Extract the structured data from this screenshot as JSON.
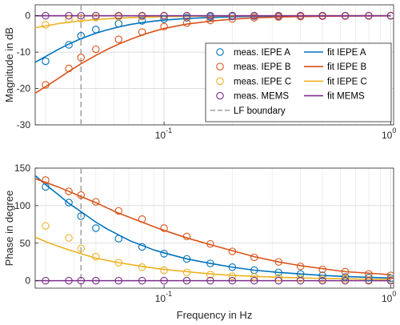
{
  "chart_data": [
    {
      "type": "line",
      "xscale": "log",
      "xlim": [
        0.027,
        1.03
      ],
      "ylim": [
        -30,
        3
      ],
      "yticks": [
        0,
        -10,
        -20,
        -30
      ],
      "ytick_labels": [
        "0",
        "-10",
        "-20",
        "-30"
      ],
      "xticks": [
        0.1,
        1
      ],
      "xtick_labels": [
        "10",
        "-1",
        "10",
        "0"
      ],
      "ylabel": "Magnitude in dB",
      "xlabel": "",
      "grid": true,
      "legend_position": "center-right",
      "boundary": {
        "name": "LF boundary",
        "x": 0.043,
        "color": "#a0a0a0"
      },
      "series": [
        {
          "name": "meas. IEPE A",
          "color": "#0072BD",
          "kind": "marker",
          "x": [
            0.03,
            0.038,
            0.043,
            0.05,
            0.063,
            0.08,
            0.1,
            0.126,
            0.16,
            0.2,
            0.25,
            0.32,
            0.4,
            0.5,
            0.63,
            0.8,
            1.0
          ],
          "y": [
            -12.5,
            -8,
            -5.5,
            -3.8,
            -2.2,
            -1.4,
            -0.9,
            -0.55,
            -0.35,
            -0.2,
            -0.12,
            -0.08,
            -0.05,
            -0.03,
            -0.02,
            -0.01,
            0
          ]
        },
        {
          "name": "meas. IEPE B",
          "color": "#D95319",
          "kind": "marker",
          "x": [
            0.03,
            0.038,
            0.043,
            0.05,
            0.063,
            0.08,
            0.1,
            0.126,
            0.16,
            0.2,
            0.25,
            0.32,
            0.4,
            0.5,
            0.63,
            0.8,
            1.0
          ],
          "y": [
            -19,
            -14.5,
            -11.5,
            -9.2,
            -6.5,
            -4.5,
            -3,
            -2,
            -1.3,
            -0.85,
            -0.55,
            -0.35,
            -0.22,
            -0.14,
            -0.09,
            -0.05,
            -0.03
          ]
        },
        {
          "name": "meas. IEPE C",
          "color": "#EDB120",
          "kind": "marker",
          "x": [
            0.03,
            0.038,
            0.043,
            0.05,
            0.063,
            0.08,
            0.1,
            0.126,
            0.16,
            0.2,
            0.25,
            0.32,
            0.4,
            0.5,
            0.63,
            0.8,
            1.0
          ],
          "y": [
            -2.5,
            -1,
            -0.8,
            -0.5,
            -0.3,
            -0.2,
            -0.12,
            -0.08,
            -0.05,
            -0.03,
            -0.02,
            -0.01,
            0,
            0,
            0,
            0,
            0
          ]
        },
        {
          "name": "meas. MEMS",
          "color": "#7E2F8E",
          "kind": "marker",
          "x": [
            0.03,
            0.038,
            0.043,
            0.05,
            0.063,
            0.08,
            0.1,
            0.126,
            0.16,
            0.2,
            0.25,
            0.32,
            0.4,
            0.5,
            0.63,
            0.8,
            1.0
          ],
          "y": [
            0,
            0,
            0,
            0,
            0,
            0,
            0,
            0,
            0,
            0,
            0,
            0,
            0,
            0,
            0,
            0,
            0
          ]
        },
        {
          "name": "fit IEPE A",
          "color": "#0072BD",
          "kind": "line",
          "x": [
            0.027,
            0.03,
            0.034,
            0.038,
            0.043,
            0.05,
            0.056,
            0.063,
            0.071,
            0.08,
            0.09,
            0.1,
            0.126,
            0.16,
            0.2,
            0.25,
            0.32,
            0.4,
            0.5,
            0.63,
            0.8,
            1.0
          ],
          "y": [
            -12.8,
            -11.2,
            -9.3,
            -7.8,
            -6.3,
            -4.8,
            -3.9,
            -3.1,
            -2.4,
            -1.9,
            -1.5,
            -1.2,
            -0.75,
            -0.48,
            -0.3,
            -0.19,
            -0.12,
            -0.08,
            -0.05,
            -0.03,
            -0.02,
            -0.01
          ]
        },
        {
          "name": "fit IEPE B",
          "color": "#D95319",
          "kind": "line",
          "x": [
            0.027,
            0.03,
            0.034,
            0.038,
            0.043,
            0.05,
            0.056,
            0.063,
            0.071,
            0.08,
            0.09,
            0.1,
            0.126,
            0.16,
            0.2,
            0.25,
            0.32,
            0.4,
            0.5,
            0.63,
            0.8,
            1.0
          ],
          "y": [
            -21.3,
            -19.5,
            -17.3,
            -15.3,
            -13.2,
            -10.9,
            -9.3,
            -7.8,
            -6.5,
            -5.3,
            -4.3,
            -3.5,
            -2.3,
            -1.5,
            -0.95,
            -0.6,
            -0.38,
            -0.24,
            -0.15,
            -0.1,
            -0.06,
            -0.04
          ]
        },
        {
          "name": "fit IEPE C",
          "color": "#EDB120",
          "kind": "line",
          "x": [
            0.027,
            0.03,
            0.034,
            0.038,
            0.043,
            0.05,
            0.063,
            0.08,
            0.1,
            0.126,
            0.16,
            0.2,
            0.32,
            0.5,
            1.0
          ],
          "y": [
            -3.3,
            -2.8,
            -2.2,
            -1.8,
            -1.4,
            -1.05,
            -0.65,
            -0.4,
            -0.25,
            -0.16,
            -0.1,
            -0.06,
            -0.025,
            -0.01,
            0
          ]
        },
        {
          "name": "fit MEMS",
          "color": "#7E2F8E",
          "kind": "line",
          "x": [
            0.027,
            1.0
          ],
          "y": [
            0,
            0
          ]
        }
      ]
    },
    {
      "type": "line",
      "xscale": "log",
      "xlim": [
        0.027,
        1.03
      ],
      "ylim": [
        -10,
        150
      ],
      "yticks": [
        0,
        50,
        100,
        150
      ],
      "ytick_labels": [
        "0",
        "50",
        "100",
        "150"
      ],
      "xticks": [
        0.1,
        1
      ],
      "xtick_labels": [
        "10",
        "-1",
        "10",
        "0"
      ],
      "ylabel": "Phase in degree",
      "xlabel": "Frequency in Hz",
      "grid": true,
      "boundary": {
        "name": "LF boundary",
        "x": 0.043,
        "color": "#a0a0a0"
      },
      "series": [
        {
          "name": "meas. IEPE A",
          "color": "#0072BD",
          "kind": "marker",
          "x": [
            0.03,
            0.038,
            0.043,
            0.05,
            0.063,
            0.08,
            0.1,
            0.126,
            0.16,
            0.2,
            0.25,
            0.32,
            0.4,
            0.5,
            0.63,
            0.8,
            1.0
          ],
          "y": [
            125,
            104,
            86,
            70,
            56,
            45,
            36,
            29,
            23,
            18,
            14,
            11,
            9,
            7,
            5,
            4,
            3
          ]
        },
        {
          "name": "meas. IEPE B",
          "color": "#D95319",
          "kind": "marker",
          "x": [
            0.03,
            0.038,
            0.043,
            0.05,
            0.063,
            0.08,
            0.1,
            0.126,
            0.16,
            0.2,
            0.25,
            0.32,
            0.4,
            0.5,
            0.63,
            0.8,
            1.0
          ],
          "y": [
            134,
            119,
            114,
            105,
            93,
            82,
            70,
            59,
            49,
            39,
            31,
            25,
            19,
            15,
            12,
            9,
            7
          ]
        },
        {
          "name": "meas. IEPE C",
          "color": "#EDB120",
          "kind": "marker",
          "x": [
            0.03,
            0.038,
            0.043,
            0.05,
            0.063,
            0.08,
            0.1,
            0.126,
            0.16,
            0.2,
            0.25,
            0.32,
            0.4,
            0.5,
            0.63,
            0.8,
            1.0
          ],
          "y": [
            73,
            57,
            43,
            32,
            24,
            18,
            14,
            11,
            8,
            6,
            5,
            4,
            3,
            2,
            2,
            1,
            1
          ]
        },
        {
          "name": "meas. MEMS",
          "color": "#7E2F8E",
          "kind": "marker",
          "x": [
            0.03,
            0.038,
            0.043,
            0.05,
            0.063,
            0.08,
            0.1,
            0.126,
            0.16,
            0.2,
            0.25,
            0.32,
            0.4,
            0.5,
            0.63,
            0.8,
            1.0
          ],
          "y": [
            0,
            0,
            0,
            0,
            0,
            0,
            0,
            0,
            0,
            0,
            0,
            0,
            0,
            0,
            0,
            0,
            0
          ]
        },
        {
          "name": "fit IEPE A",
          "color": "#0072BD",
          "kind": "line",
          "x": [
            0.027,
            0.03,
            0.034,
            0.038,
            0.043,
            0.05,
            0.056,
            0.063,
            0.071,
            0.08,
            0.09,
            0.1,
            0.126,
            0.16,
            0.2,
            0.25,
            0.32,
            0.4,
            0.5,
            0.63,
            0.8,
            1.0
          ],
          "y": [
            140,
            128,
            115,
            103,
            92,
            78,
            69,
            61,
            53,
            47,
            41,
            37,
            29,
            23,
            18,
            14,
            11,
            9,
            7,
            5.5,
            4.5,
            3.5
          ]
        },
        {
          "name": "fit IEPE B",
          "color": "#D95319",
          "kind": "line",
          "x": [
            0.027,
            0.03,
            0.034,
            0.038,
            0.043,
            0.05,
            0.056,
            0.063,
            0.071,
            0.08,
            0.09,
            0.1,
            0.126,
            0.16,
            0.2,
            0.25,
            0.32,
            0.4,
            0.5,
            0.63,
            0.8,
            1.0
          ],
          "y": [
            136,
            131,
            125,
            119,
            112,
            104,
            97,
            90,
            84,
            78,
            72,
            67,
            57,
            48,
            40,
            32,
            25,
            20,
            16,
            12,
            10,
            8
          ]
        },
        {
          "name": "fit IEPE C",
          "color": "#EDB120",
          "kind": "line",
          "x": [
            0.027,
            0.03,
            0.034,
            0.038,
            0.043,
            0.05,
            0.063,
            0.08,
            0.1,
            0.126,
            0.16,
            0.2,
            0.32,
            0.5,
            0.8,
            1.0
          ],
          "y": [
            58,
            52,
            46,
            41,
            36,
            30,
            24,
            19,
            15,
            12,
            9,
            7,
            4.5,
            3,
            2,
            1.5
          ]
        },
        {
          "name": "fit MEMS",
          "color": "#7E2F8E",
          "kind": "line",
          "x": [
            0.027,
            1.0
          ],
          "y": [
            0,
            0
          ]
        }
      ]
    }
  ],
  "legend": {
    "entries": [
      {
        "label": "meas. IEPE A",
        "color": "#0072BD",
        "kind": "marker"
      },
      {
        "label": "fit IEPE A",
        "color": "#0072BD",
        "kind": "line"
      },
      {
        "label": "meas. IEPE B",
        "color": "#D95319",
        "kind": "marker"
      },
      {
        "label": "fit IEPE B",
        "color": "#D95319",
        "kind": "line"
      },
      {
        "label": "meas. IEPE C",
        "color": "#EDB120",
        "kind": "marker"
      },
      {
        "label": "fit IEPE C",
        "color": "#EDB120",
        "kind": "line"
      },
      {
        "label": "meas. MEMS",
        "color": "#7E2F8E",
        "kind": "marker"
      },
      {
        "label": "fit MEMS",
        "color": "#7E2F8E",
        "kind": "line"
      },
      {
        "label": "LF boundary",
        "color": "#a0a0a0",
        "kind": "dashed"
      }
    ]
  }
}
